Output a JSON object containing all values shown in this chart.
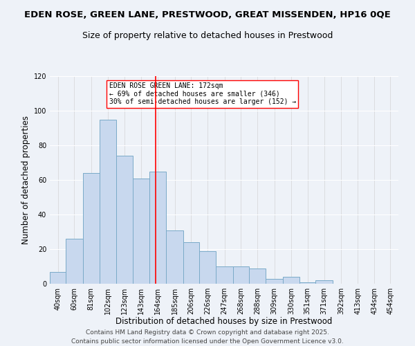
{
  "title_line1": "EDEN ROSE, GREEN LANE, PRESTWOOD, GREAT MISSENDEN, HP16 0QE",
  "title_line2": "Size of property relative to detached houses in Prestwood",
  "xlabel": "Distribution of detached houses by size in Prestwood",
  "ylabel": "Number of detached properties",
  "bin_labels": [
    "40sqm",
    "60sqm",
    "81sqm",
    "102sqm",
    "123sqm",
    "143sqm",
    "164sqm",
    "185sqm",
    "206sqm",
    "226sqm",
    "247sqm",
    "268sqm",
    "288sqm",
    "309sqm",
    "330sqm",
    "351sqm",
    "371sqm",
    "392sqm",
    "413sqm",
    "434sqm",
    "454sqm"
  ],
  "bin_edges": [
    40,
    60,
    81,
    102,
    123,
    143,
    164,
    185,
    206,
    226,
    247,
    268,
    288,
    309,
    330,
    351,
    371,
    392,
    413,
    434,
    454
  ],
  "bar_heights": [
    7,
    26,
    64,
    95,
    74,
    61,
    65,
    31,
    24,
    19,
    10,
    10,
    9,
    3,
    4,
    1,
    2,
    0,
    0,
    0,
    0
  ],
  "bar_color": "#c8d8ee",
  "bar_edge_color": "#7aaac8",
  "red_line_x": 172,
  "annotation_title": "EDEN ROSE GREEN LANE: 172sqm",
  "annotation_line1": "← 69% of detached houses are smaller (346)",
  "annotation_line2": "30% of semi-detached houses are larger (152) →",
  "ylim": [
    0,
    120
  ],
  "yticks": [
    0,
    20,
    40,
    60,
    80,
    100,
    120
  ],
  "background_color": "#eef2f8",
  "plot_background": "#eef2f8",
  "footer_line1": "Contains HM Land Registry data © Crown copyright and database right 2025.",
  "footer_line2": "Contains public sector information licensed under the Open Government Licence v3.0.",
  "title_fontsize": 9.5,
  "subtitle_fontsize": 9,
  "axis_label_fontsize": 8.5,
  "tick_fontsize": 7,
  "annot_fontsize": 7,
  "footer_fontsize": 6.5
}
